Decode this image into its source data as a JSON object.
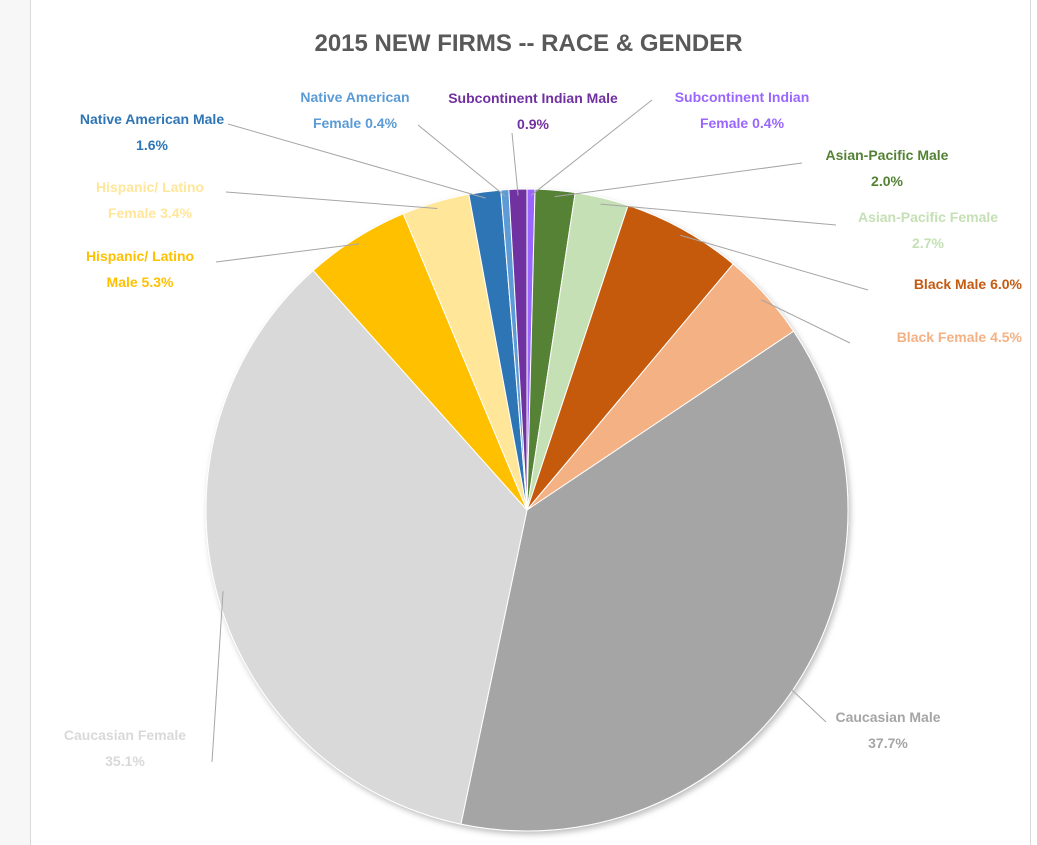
{
  "chart_data": {
    "type": "pie",
    "title": "2015 NEW FIRMS -- RACE & GENDER",
    "categories": [
      "Subcontinent Indian Female",
      "Asian-Pacific Male",
      "Asian-Pacific Female",
      "Black Male",
      "Black Female",
      "Caucasian Male",
      "Caucasian Female",
      "Hispanic/ Latino Male",
      "Hispanic/ Latino Female",
      "Native American Male",
      "Native American Female",
      "Subcontinent Indian Male"
    ],
    "values": [
      0.4,
      2.0,
      2.7,
      6.0,
      4.5,
      37.7,
      35.1,
      5.3,
      3.4,
      1.6,
      0.4,
      0.9
    ],
    "value_labels": [
      "0.4%",
      "2.0%",
      "2.7%",
      "6.0%",
      "4.5%",
      "37.7%",
      "35.1%",
      "5.3%",
      "3.4%",
      "1.6%",
      "0.4%",
      "0.9%"
    ],
    "colors": [
      "#9966ff",
      "#548235",
      "#c5e0b4",
      "#c55a11",
      "#f4b183",
      "#a5a5a5",
      "#d9d9d9",
      "#ffc000",
      "#ffe699",
      "#2e75b6",
      "#5b9bd5",
      "#7030a0"
    ]
  }
}
